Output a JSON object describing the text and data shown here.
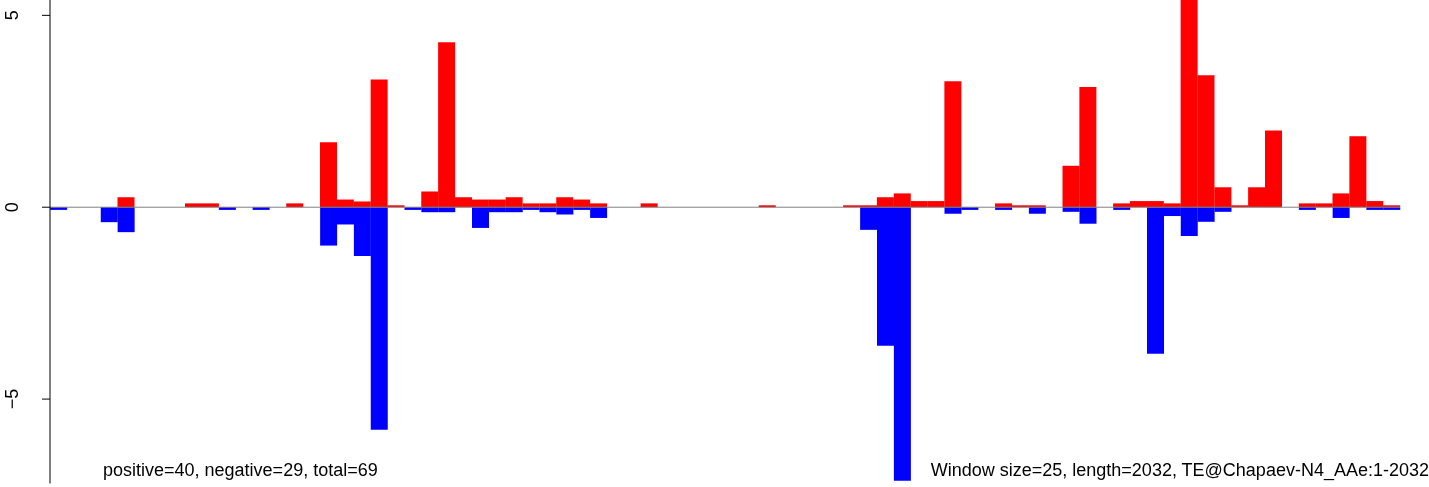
{
  "chart_data": {
    "type": "bar",
    "categories": [
      null,
      null,
      null,
      null,
      null,
      null,
      null,
      null,
      null,
      null,
      null,
      null,
      null,
      null,
      null,
      null,
      null,
      null,
      null,
      null,
      null,
      null,
      null,
      null,
      null,
      null,
      null,
      null,
      null,
      null,
      null,
      null,
      null,
      null,
      null,
      null,
      null,
      null,
      null,
      null,
      null,
      null,
      null,
      null,
      null,
      null,
      null,
      null,
      null,
      null,
      null,
      null,
      null,
      null,
      null,
      null,
      null,
      null,
      null,
      null,
      null,
      null,
      null,
      null,
      null,
      null,
      null,
      null,
      null,
      null,
      null,
      null,
      null,
      null,
      null,
      null,
      null,
      null,
      null,
      null
    ],
    "series": [
      {
        "color": "#ff0000",
        "values": [
          0,
          0,
          0,
          0,
          0.26,
          0,
          0,
          0,
          0.1,
          0.1,
          0,
          0,
          0,
          0,
          0.1,
          0,
          1.69,
          0.2,
          0.15,
          3.33,
          0.05,
          0,
          0.41,
          4.3,
          0.26,
          0.2,
          0.2,
          0.26,
          0.1,
          0.1,
          0.26,
          0.2,
          0.1,
          0,
          0,
          0.1,
          0,
          0,
          0,
          0,
          0,
          0,
          0.05,
          0,
          0,
          0,
          0,
          0.05,
          0.05,
          0.26,
          0.36,
          0.16,
          0.16,
          3.28,
          0,
          0,
          0.1,
          0.05,
          0.05,
          0,
          1.08,
          3.13,
          0,
          0.1,
          0.16,
          0.16,
          0.1,
          5.4,
          3.44,
          0.52,
          0.05,
          0.52,
          2.0,
          0,
          0.1,
          0.1,
          0.36,
          1.85,
          0.16,
          0.05
        ]
      },
      {
        "color": "#0000ff",
        "values": [
          -0.07,
          0,
          0,
          -0.39,
          -0.65,
          0,
          0,
          0,
          0,
          0,
          -0.07,
          0,
          -0.07,
          0,
          0,
          0,
          -1.0,
          -0.45,
          -1.27,
          -5.8,
          0,
          -0.07,
          -0.13,
          -0.13,
          0,
          -0.54,
          -0.13,
          -0.13,
          -0.07,
          -0.13,
          -0.19,
          -0.07,
          -0.28,
          0,
          0,
          0,
          0,
          0,
          0,
          0,
          0,
          0,
          0,
          0,
          0,
          0,
          0,
          0,
          -0.59,
          -3.61,
          -7.13,
          0,
          0,
          -0.17,
          -0.07,
          0,
          -0.07,
          0,
          -0.17,
          0,
          -0.12,
          -0.43,
          0,
          -0.07,
          0,
          -3.82,
          -0.23,
          -0.75,
          -0.38,
          -0.12,
          0,
          0,
          0,
          0,
          -0.07,
          0,
          -0.28,
          0,
          -0.07,
          -0.07
        ]
      }
    ],
    "ylim": [
      -7.2,
      5.4
    ],
    "yticks": [
      -5,
      0,
      5
    ],
    "tick_labels": "y",
    "ref_lines": [
      {
        "axis": "y",
        "value": 0,
        "color": "#808080"
      }
    ],
    "annotations": [
      "positive=40, negative=29, total=69",
      "Window size=25, length=2032, TE@Chapaev-N4_AAe:1-2032"
    ]
  }
}
